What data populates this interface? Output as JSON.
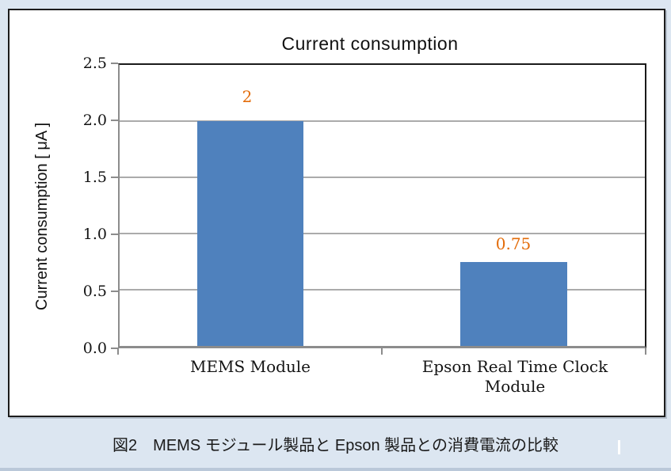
{
  "figure": {
    "title": "Current consumption",
    "y_axis_title": "Current consumption [ μA ]",
    "y_ticks": [
      "2.5",
      "2.0",
      "1.5",
      "1.0",
      "0.5",
      "0.0"
    ],
    "caption": "図2　MEMS モジュール製品と Epson 製品との消費電流の比較",
    "colors": {
      "page_background": "#dce6f1",
      "chart_background": "#ffffff",
      "bar_fill": "#4f81bd",
      "data_label": "#e36c0a",
      "gridline": "#ababab",
      "axis_line": "#8c8c8c",
      "plot_border": "#1a1a1a"
    }
  },
  "chart_data": {
    "type": "bar",
    "title": "Current consumption",
    "categories": [
      "MEMS Module",
      "Epson Real Time Clock Module"
    ],
    "values": [
      2,
      0.75
    ],
    "data_labels": [
      "2",
      "0.75"
    ],
    "xlabel": "",
    "ylabel": "Current consumption [ μA ]",
    "ylim": [
      0,
      2.5
    ],
    "ytick_step": 0.5,
    "grid": true,
    "legend": false,
    "bar_color": "#4f81bd",
    "data_label_color": "#e36c0a"
  }
}
